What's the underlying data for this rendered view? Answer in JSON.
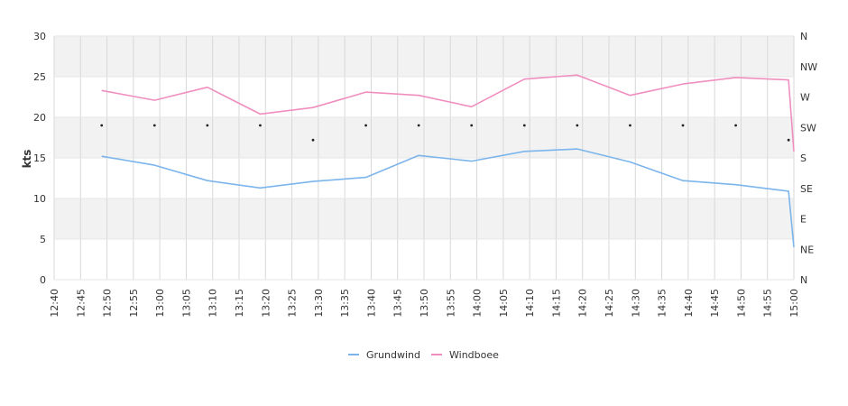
{
  "chart_data": {
    "type": "line",
    "ylabel": "kts",
    "ylim": [
      0,
      30
    ],
    "y_ticks": [
      "0",
      "5",
      "10",
      "15",
      "20",
      "25",
      "30"
    ],
    "x_ticks": [
      "12:40",
      "12:45",
      "12:50",
      "12:55",
      "13:00",
      "13:05",
      "13:10",
      "13:15",
      "13:20",
      "13:25",
      "13:30",
      "13:35",
      "13:40",
      "13:45",
      "13:50",
      "13:55",
      "14:00",
      "14:05",
      "14:10",
      "14:15",
      "14:20",
      "14:25",
      "14:30",
      "14:35",
      "14:40",
      "14:45",
      "14:50",
      "14:55",
      "15:00"
    ],
    "x_range_minutes": [
      0,
      140
    ],
    "x_start_label": "12:40",
    "y2_ticks": [
      "N",
      "NE",
      "E",
      "SE",
      "S",
      "SW",
      "W",
      "NW",
      "N"
    ],
    "series": [
      {
        "name": "Grundwind",
        "color": "#7cb5ec",
        "x": [
          "12:49",
          "12:59",
          "13:09",
          "13:19",
          "13:29",
          "13:39",
          "13:49",
          "13:59",
          "14:09",
          "14:19",
          "14:29",
          "14:39",
          "14:49",
          "14:59",
          "15:00"
        ],
        "values": [
          15.2,
          14.1,
          12.2,
          11.3,
          12.1,
          12.6,
          15.3,
          14.6,
          15.8,
          16.1,
          14.5,
          12.2,
          11.7,
          10.9,
          4.0
        ]
      },
      {
        "name": "Windboee",
        "color": "#f08fbf",
        "x": [
          "12:49",
          "12:59",
          "13:09",
          "13:19",
          "13:29",
          "13:39",
          "13:49",
          "13:59",
          "14:09",
          "14:19",
          "14:29",
          "14:39",
          "14:49",
          "14:59",
          "15:00"
        ],
        "values": [
          23.3,
          22.1,
          23.7,
          20.4,
          21.2,
          23.1,
          22.7,
          21.3,
          24.7,
          25.2,
          22.7,
          24.1,
          24.9,
          24.6,
          15.8
        ]
      }
    ],
    "direction_points": {
      "x": [
        "12:49",
        "12:59",
        "13:09",
        "13:19",
        "13:29",
        "13:39",
        "13:49",
        "13:59",
        "14:09",
        "14:19",
        "14:29",
        "14:39",
        "14:49",
        "14:59"
      ],
      "y": [
        19,
        19,
        19,
        19,
        17.2,
        19,
        19,
        19,
        19,
        19,
        19,
        19,
        19,
        17.2
      ]
    },
    "legend_position": "bottom-center",
    "grid": true
  }
}
